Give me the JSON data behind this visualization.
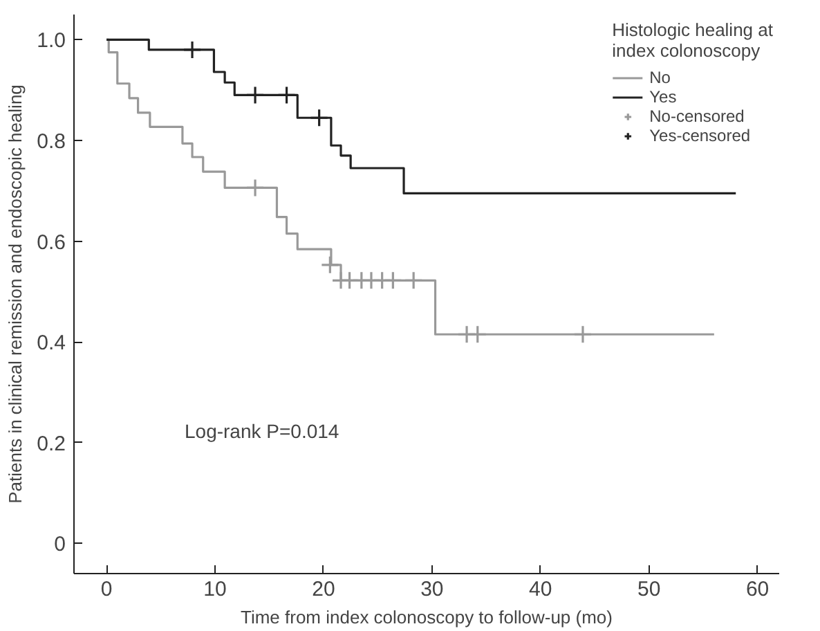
{
  "chart_data": {
    "type": "step",
    "xlabel": "Time from index colonoscopy to follow-up (mo)",
    "ylabel": "Patients in clinical remission and endoscopic healing",
    "legend_title": "Histologic healing at index colonoscopy",
    "legend": "top right",
    "grid": false,
    "line_style": "solid",
    "xlim": [
      -3,
      62
    ],
    "xticks": [
      0,
      10,
      20,
      30,
      40,
      50,
      60
    ],
    "ylim": [
      -0.06,
      1.05
    ],
    "yticks": [
      0,
      0.2,
      0.4,
      0.6,
      {
        "value": 0.8,
        "label": "0.8"
      },
      {
        "value": 1,
        "label": "1.0"
      }
    ],
    "annotations": [
      "Log-rank P=0.014"
    ],
    "series": [
      {
        "name": "No",
        "color": "#999999",
        "x": [
          0,
          0.2,
          1.0,
          2.1,
          2.9,
          4.0,
          7.0,
          7.9,
          8.9,
          10.9,
          15.7,
          16.6,
          17.6,
          20.7,
          21.6,
          30.3,
          56.0
        ],
        "values": [
          1.0,
          0.975,
          0.913,
          0.884,
          0.855,
          0.827,
          0.794,
          0.767,
          0.738,
          0.706,
          0.648,
          0.615,
          0.584,
          0.553,
          0.522,
          0.415,
          0.415
        ]
      },
      {
        "name": "Yes",
        "color": "#222222",
        "x": [
          0,
          3.9,
          9.9,
          10.9,
          11.8,
          17.6,
          20.7,
          21.6,
          22.5,
          27.4,
          58.0
        ],
        "values": [
          1.0,
          0.98,
          0.936,
          0.915,
          0.89,
          0.845,
          0.79,
          0.77,
          0.745,
          0.695,
          0.695
        ]
      },
      {
        "name": "No-censored",
        "type": "scatter",
        "marker": "cross",
        "color": "#999999",
        "x": [
          13.7,
          20.6,
          21.6,
          22.4,
          23.5,
          24.4,
          25.4,
          26.4,
          28.3,
          33.2,
          34.2,
          43.9
        ],
        "values": [
          0.706,
          0.553,
          0.522,
          0.522,
          0.522,
          0.522,
          0.522,
          0.522,
          0.522,
          0.415,
          0.415,
          0.415
        ]
      },
      {
        "name": "Yes-censored",
        "type": "scatter",
        "marker": "cross",
        "color": "#222222",
        "x": [
          7.9,
          13.7,
          16.6,
          19.6
        ],
        "values": [
          0.98,
          0.89,
          0.89,
          0.845
        ]
      }
    ]
  }
}
